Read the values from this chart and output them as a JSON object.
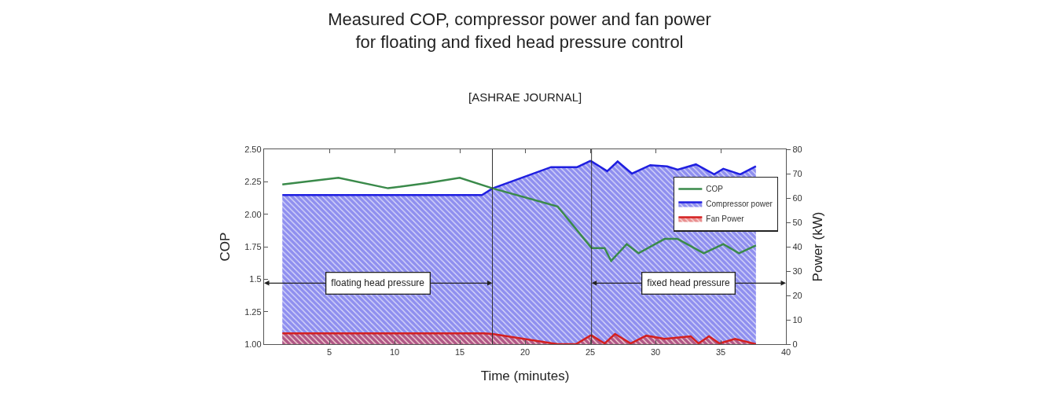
{
  "chart_data": {
    "type": "line",
    "title": "Measured COP, compressor power and fan power\nfor floating and fixed head pressure control",
    "subtitle": "[ASHRAE JOURNAL]",
    "xlabel": "Time (minutes)",
    "ylabel": "COP",
    "y2label": "Power (kW)",
    "xlim": [
      0,
      40
    ],
    "xticks": [
      5,
      10,
      15,
      20,
      25,
      30,
      35,
      40
    ],
    "ylim": [
      1,
      2.5
    ],
    "yticks": [
      {
        "value": 1,
        "label": "1.00"
      },
      {
        "value": 1.25,
        "label": "1.25"
      },
      {
        "value": 1.5,
        "label": "1.5"
      },
      {
        "value": 1.75,
        "label": "1.75"
      },
      {
        "value": 2,
        "label": "2.00"
      },
      {
        "value": 2.25,
        "label": "2.25"
      },
      {
        "value": 2.5,
        "label": "2.50"
      }
    ],
    "y2lim": [
      0,
      80
    ],
    "y2ticks": [
      0,
      10,
      20,
      30,
      40,
      50,
      60,
      70,
      80
    ],
    "legend": "top right",
    "marker": "none",
    "line_style": "solid",
    "ref_lines": [
      {
        "axis": "x",
        "value": 17.5
      },
      {
        "axis": "x",
        "value": 25.1
      }
    ],
    "annotations": [
      {
        "text": "floating head pressure",
        "x": 17.5,
        "y": 1.47
      },
      {
        "text": "fixed head pressure",
        "x": 25.1,
        "y": 1.47
      }
    ],
    "series": [
      {
        "name": "COP",
        "color": "#3a8a4a",
        "x": [
          1.4,
          5.7,
          9.5,
          12.5,
          15.0,
          17.5,
          22.5,
          25.1,
          26.1,
          26.6,
          27.8,
          28.7,
          30.7,
          31.7,
          33.7,
          35.2,
          36.4,
          37.7
        ],
        "values": [
          2.23,
          2.28,
          2.2,
          2.24,
          2.28,
          2.2,
          2.06,
          1.74,
          1.74,
          1.64,
          1.77,
          1.7,
          1.81,
          1.81,
          1.7,
          1.77,
          1.7,
          1.76
        ]
      },
      {
        "name": "Compressor power",
        "type": "area",
        "axis": "y2",
        "color": "#1f1fe0",
        "x": [
          1.4,
          16.7,
          17.5,
          22.0,
          24.0,
          25.0,
          25.1,
          26.3,
          27.1,
          28.2,
          29.6,
          30.9,
          31.7,
          33.1,
          34.5,
          35.2,
          36.5,
          37.7
        ],
        "values": [
          61.2,
          61.2,
          63.9,
          72.7,
          72.7,
          75.2,
          75,
          71,
          75,
          70,
          73.5,
          73,
          71.6,
          73.8,
          69.7,
          72,
          69.7,
          73
        ]
      },
      {
        "name": "Fan Power",
        "type": "area",
        "axis": "y2",
        "color": "#d42020",
        "x": [
          1.4,
          16.9,
          17.5,
          22.5,
          23.9,
          25.0,
          25.1,
          26.1,
          26.9,
          28.1,
          29.3,
          30.7,
          32.7,
          33.3,
          34.1,
          34.9,
          36.1,
          37.7
        ],
        "values": [
          4.4,
          4.4,
          4.2,
          0,
          0,
          3.5,
          3.6,
          0.3,
          4.2,
          0.3,
          3.5,
          2.2,
          3.2,
          0.3,
          3.2,
          0.3,
          2.2,
          0
        ]
      }
    ]
  }
}
